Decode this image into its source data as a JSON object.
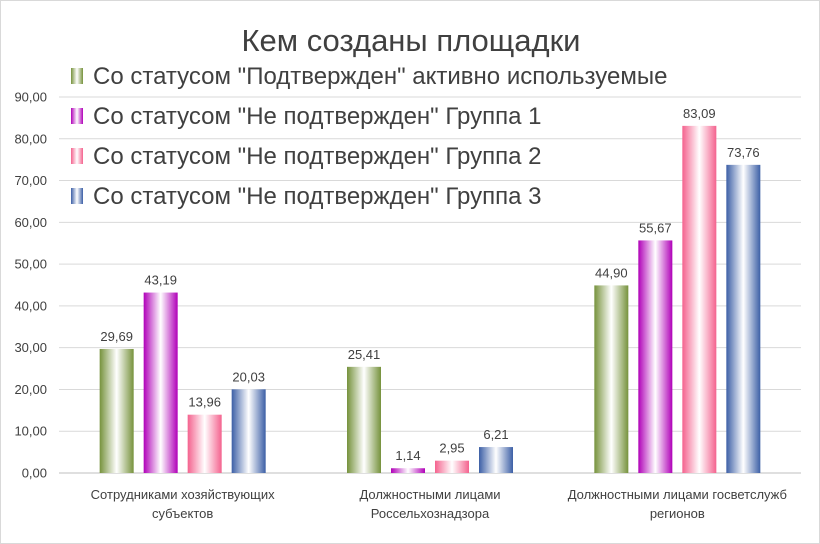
{
  "chart_data": {
    "type": "bar",
    "title": "Кем созданы площадки",
    "categories": [
      [
        "Сотрудниками хозяйствующих",
        "субъектов"
      ],
      [
        "Должностными лицами",
        "Россельхознадзора"
      ],
      [
        "Должностными лицами госветслужб",
        "регионов"
      ]
    ],
    "series": [
      {
        "name": "Со статусом \"Подтвержден\" активно используемые",
        "values": [
          29.69,
          25.41,
          44.9
        ],
        "labels": [
          "29,69",
          "25,41",
          "44,90"
        ],
        "color": "#76923c",
        "color_light": "#ffffff"
      },
      {
        "name": "Со статусом \"Не подтвержден\" Группа 1",
        "values": [
          43.19,
          1.14,
          55.67
        ],
        "labels": [
          "43,19",
          "1,14",
          "55,67"
        ],
        "color": "#b000b8",
        "color_light": "#ffffff"
      },
      {
        "name": "Со статусом \"Не подтвержден\" Группа 2",
        "values": [
          13.96,
          2.95,
          83.09
        ],
        "labels": [
          "13,96",
          "2,95",
          "83,09"
        ],
        "color": "#f4628e",
        "color_light": "#ffffff"
      },
      {
        "name": "Со статусом \"Не подтвержден\" Группа 3",
        "values": [
          20.03,
          6.21,
          73.76
        ],
        "labels": [
          "20,03",
          "6,21",
          "73,76"
        ],
        "color": "#3c5fa6",
        "color_light": "#ffffff"
      }
    ],
    "ylim": [
      0,
      90
    ],
    "yticks": [
      "0,00",
      "10,00",
      "20,00",
      "30,00",
      "40,00",
      "50,00",
      "60,00",
      "70,00",
      "80,00",
      "90,00"
    ],
    "grid": true,
    "legend_position": "top-left"
  }
}
